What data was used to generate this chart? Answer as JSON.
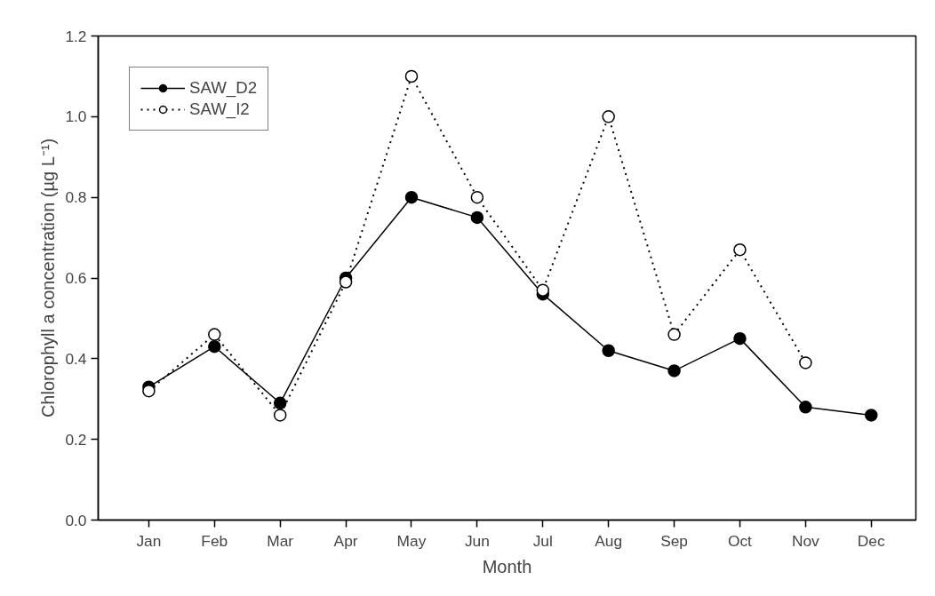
{
  "chart_data": {
    "type": "line",
    "xlabel": "Month",
    "ylabel": "Chlorophyll a concentration (µg L⁻¹)",
    "categories": [
      "Jan",
      "Feb",
      "Mar",
      "Apr",
      "May",
      "Jun",
      "Jul",
      "Aug",
      "Sep",
      "Oct",
      "Nov",
      "Dec"
    ],
    "ylim": [
      0,
      1.2
    ],
    "yticks": [
      {
        "value": 0,
        "label": "0.0"
      },
      0.2,
      0.4,
      0.6,
      0.8,
      {
        "value": 1,
        "label": "1.0"
      },
      1.2
    ],
    "grid": false,
    "legend": "top left",
    "series": [
      {
        "name": "SAW_D2",
        "color": "#000000",
        "marker": "circle",
        "line_style": "solid",
        "values": [
          0.33,
          0.43,
          0.29,
          0.6,
          0.8,
          0.75,
          0.56,
          0.42,
          0.37,
          0.45,
          0.28,
          0.26
        ]
      },
      {
        "name": "SAW_I2",
        "color": "#000000",
        "marker": "circle_open",
        "line_style": "dotted",
        "values": [
          0.32,
          0.46,
          0.26,
          0.59,
          1.1,
          0.8,
          0.57,
          1.0,
          0.46,
          0.67,
          0.39,
          null
        ]
      }
    ]
  }
}
